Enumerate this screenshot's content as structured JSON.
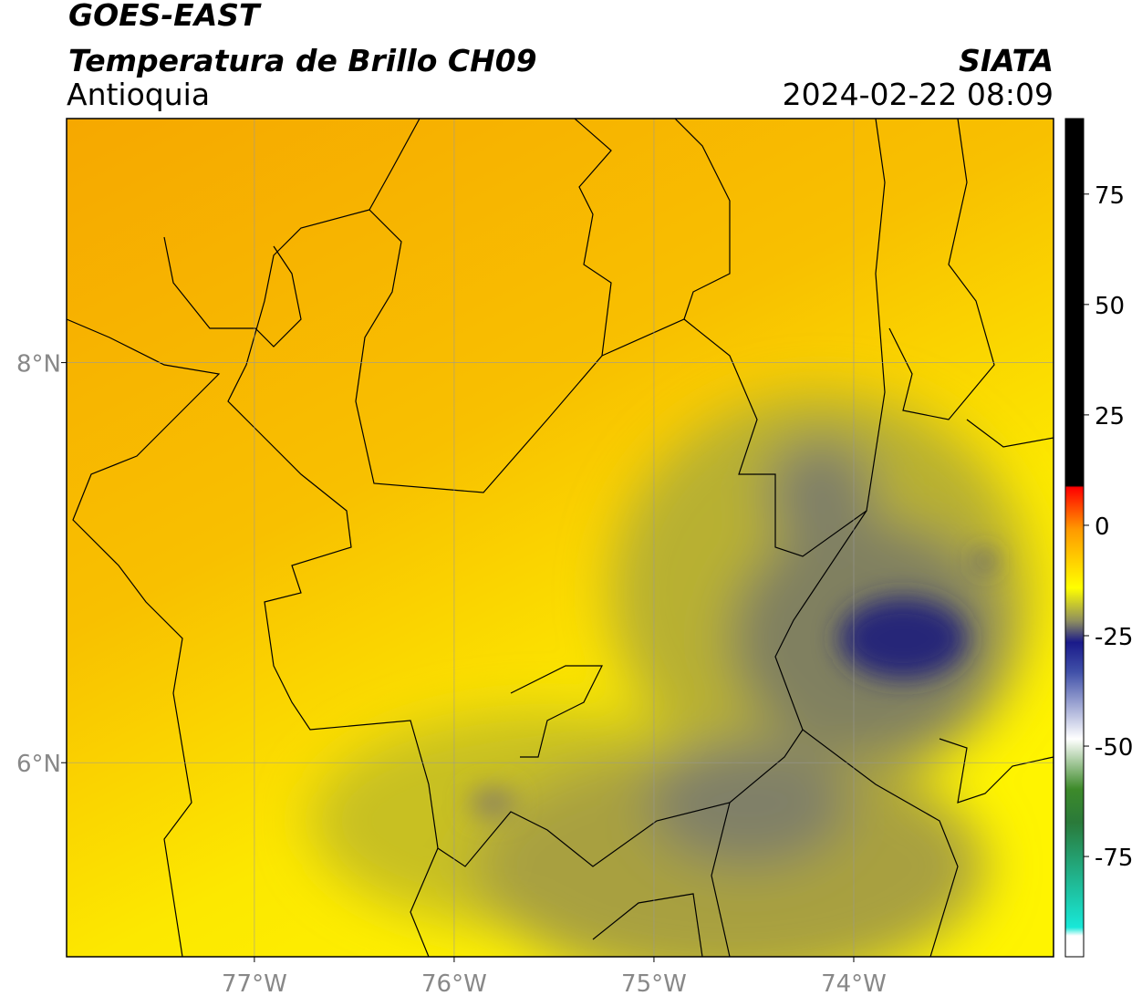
{
  "header": {
    "title": "GOES-EAST",
    "subtitle": "Temperatura de Brillo CH09",
    "region": "Antioquia",
    "source": "SIATA",
    "datetime": "2024-02-22 08:09"
  },
  "map": {
    "xlim": [
      -77.94,
      -73.0
    ],
    "ylim": [
      5.03,
      9.22
    ],
    "xticks": [
      {
        "value": -77,
        "label": "77°W"
      },
      {
        "value": -76,
        "label": "76°W"
      },
      {
        "value": -75,
        "label": "75°W"
      },
      {
        "value": -74,
        "label": "74°W"
      }
    ],
    "yticks": [
      {
        "value": 8,
        "label": "8°N"
      },
      {
        "value": 6,
        "label": "6°N"
      }
    ],
    "grid": true
  },
  "colorbar": {
    "lim": [
      -97.7,
      92.1
    ],
    "ticks": [
      75,
      50,
      25,
      0,
      -25,
      -50,
      -75
    ]
  }
}
